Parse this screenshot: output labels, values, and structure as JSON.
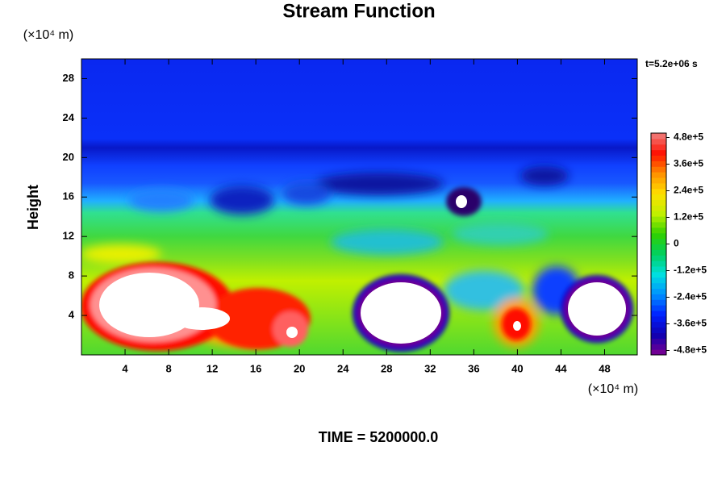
{
  "chart_data": {
    "type": "contour",
    "title": "Stream Function",
    "ylabel": "Height",
    "y_unit": "(×10⁴ m)",
    "x_unit": "(×10⁴ m)",
    "annotation": "t=5.2e+06 s",
    "footer": "TIME = 5200000.0",
    "xlim": [
      0,
      51
    ],
    "ylim": [
      0,
      30
    ],
    "xticks": [
      4,
      8,
      12,
      16,
      20,
      24,
      28,
      32,
      36,
      40,
      44,
      48
    ],
    "yticks": [
      4,
      8,
      12,
      16,
      20,
      24,
      28
    ],
    "colorbar_lim": [
      -500000,
      500000
    ],
    "colorbar_ticks": [
      {
        "value": 480000,
        "label": "4.8e+5"
      },
      {
        "value": 360000,
        "label": "3.6e+5"
      },
      {
        "value": 240000,
        "label": "2.4e+5"
      },
      {
        "value": 120000,
        "label": "1.2e+5"
      },
      0,
      {
        "value": -120000,
        "label": "-1.2e+5"
      },
      {
        "value": -240000,
        "label": "-2.4e+5"
      },
      {
        "value": -360000,
        "label": "-3.6e+5"
      },
      {
        "value": -480000,
        "label": "-4.8e+5"
      }
    ],
    "colormap": [
      "#800090",
      "#1000b0",
      "#0020ff",
      "#0090ff",
      "#00e0e0",
      "#00d060",
      "#30d000",
      "#c0f000",
      "#ffe000",
      "#ff9000",
      "#ff1000",
      "#f08080"
    ]
  }
}
